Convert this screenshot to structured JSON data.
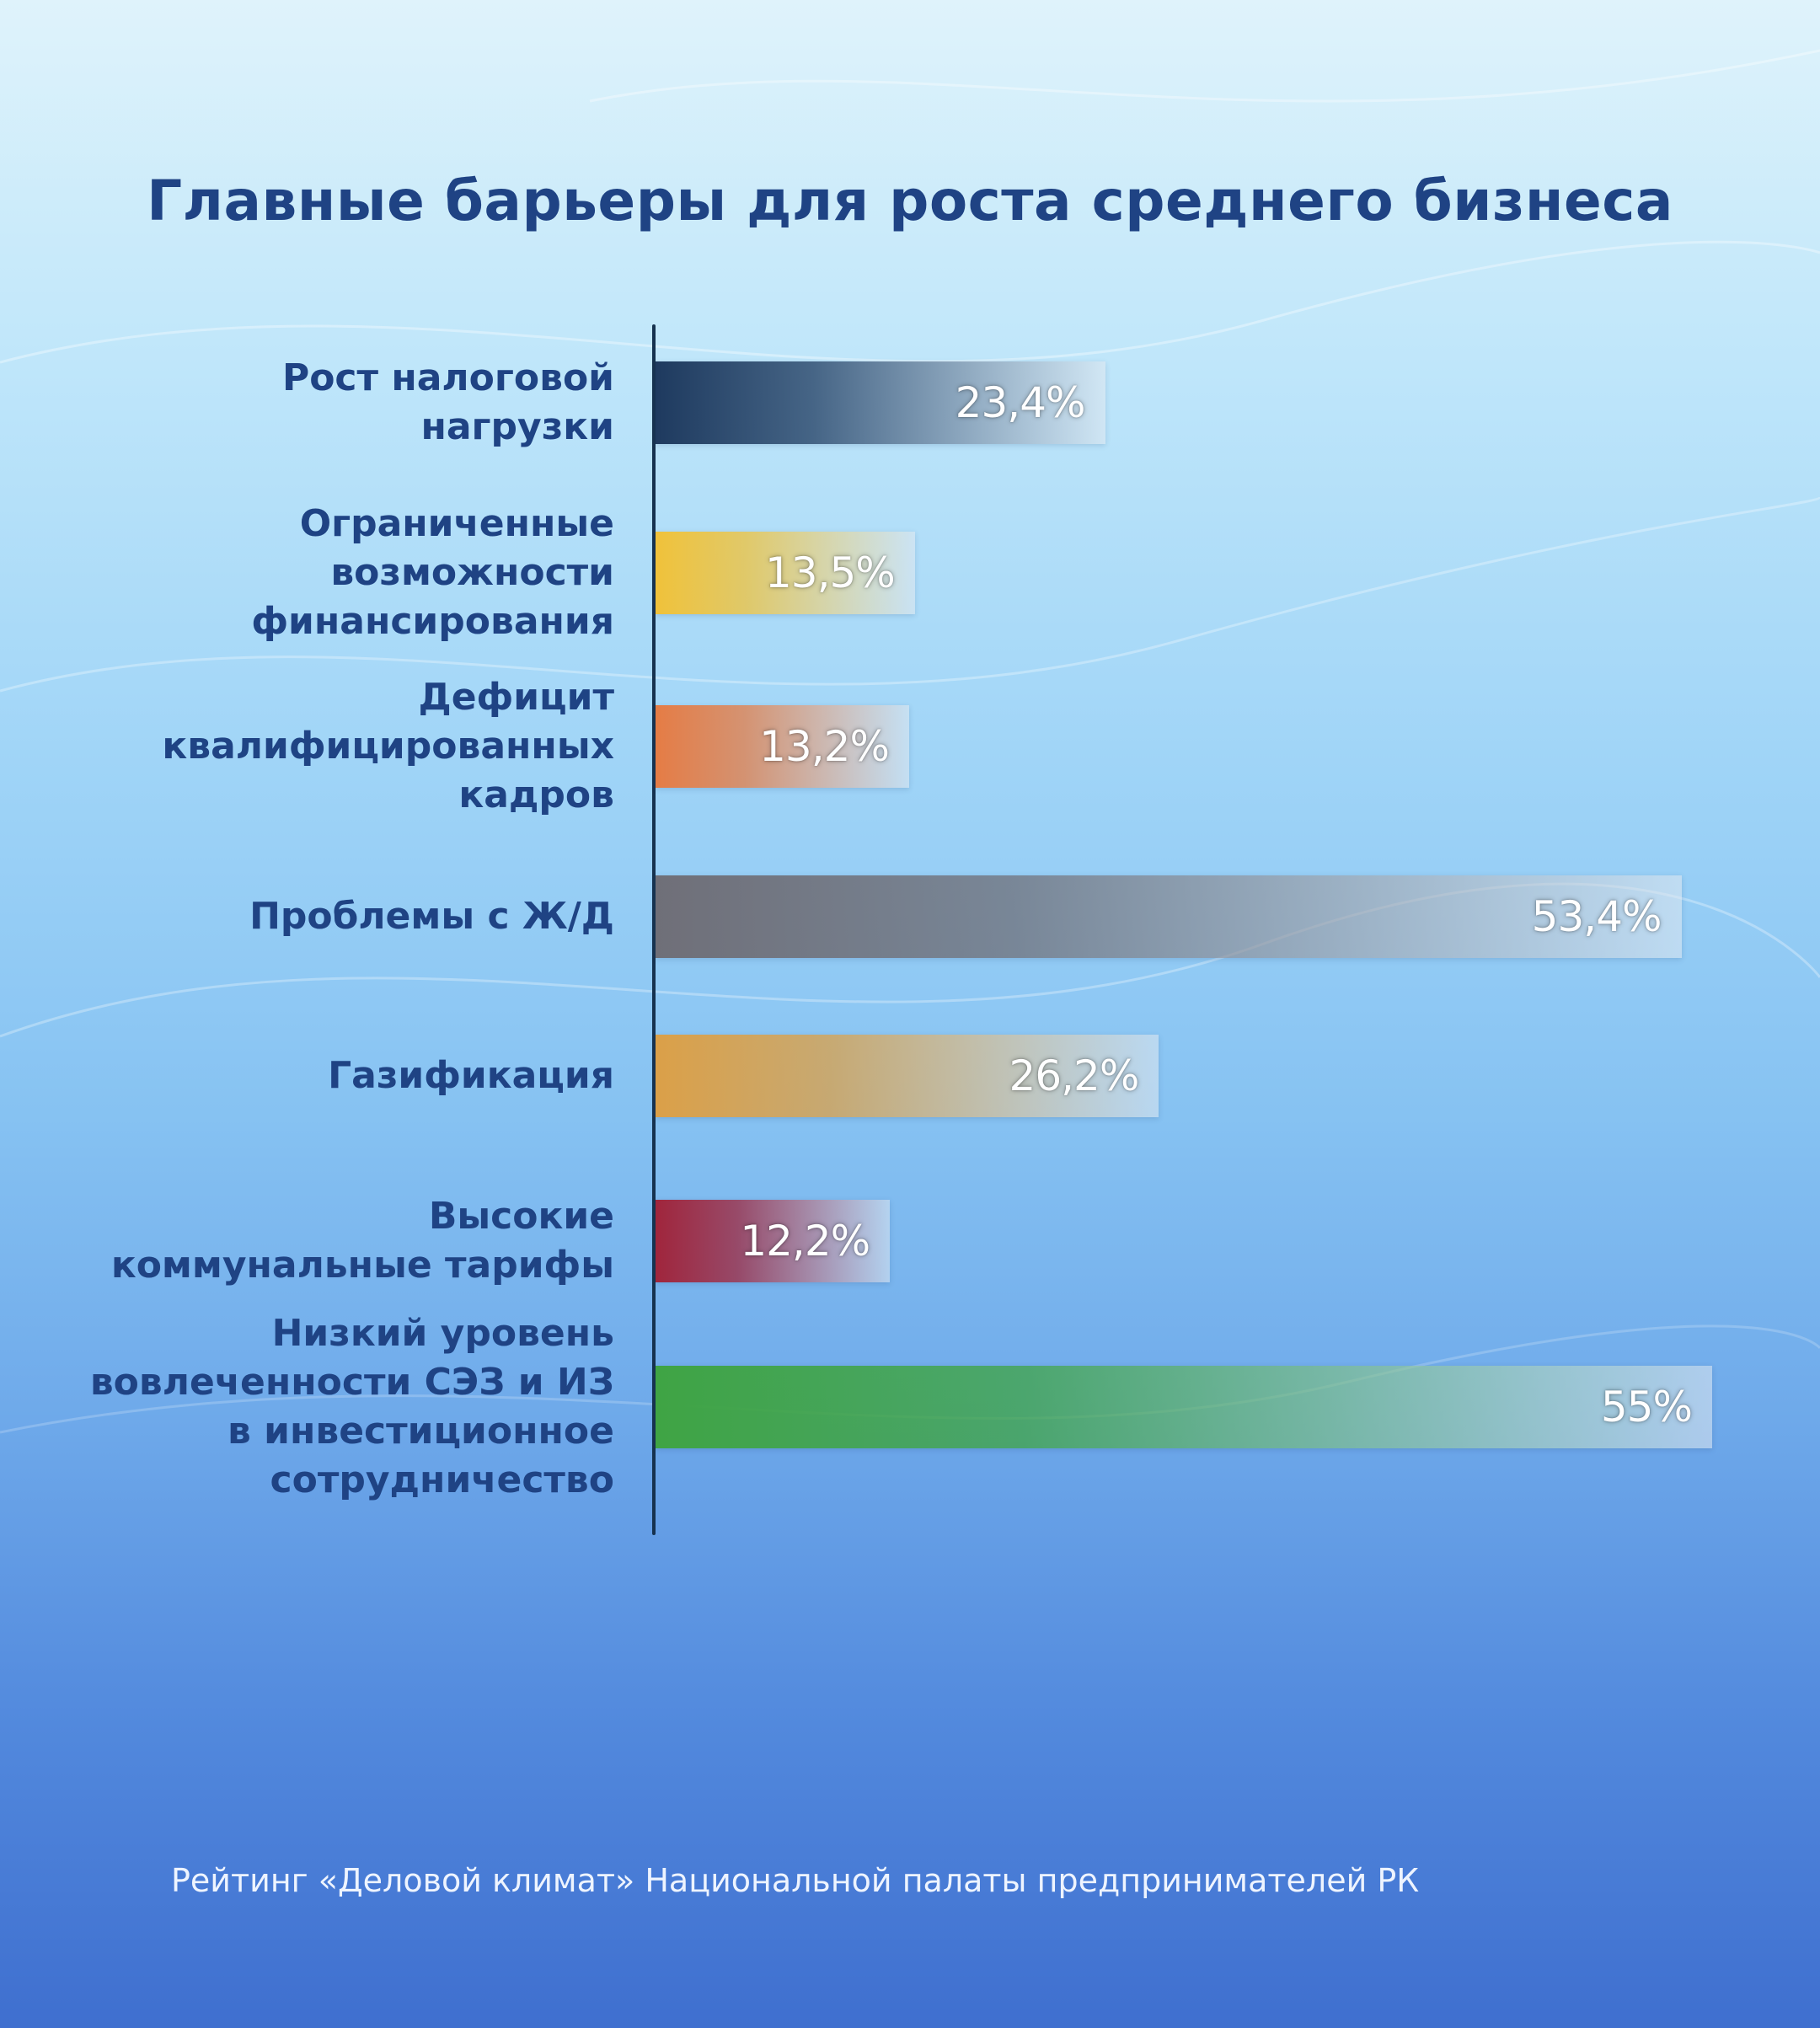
{
  "title": "Главные барьеры для роста среднего бизнеса",
  "source": "Рейтинг «Деловой климат» Национальной палаты предпринимателей РК",
  "chart_data": {
    "type": "bar",
    "orientation": "horizontal",
    "title": "Главные барьеры для роста среднего бизнеса",
    "xlabel": "",
    "ylabel": "",
    "xlim": [
      0,
      60
    ],
    "grid": false,
    "categories": [
      "Рост налоговой\nнагрузки",
      "Ограниченные\nвозможности\nфинансирования",
      "Дефицит\nквалифицированных\nкадров",
      "Проблемы с Ж/Д",
      "Газификация",
      "Высокие\nкоммунальные тарифы",
      "Низкий уровень\nвовлеченности СЭЗ и ИЗ\nв инвестиционное\nсотрудничество"
    ],
    "values": [
      23.4,
      13.5,
      13.2,
      53.4,
      26.2,
      12.2,
      55
    ],
    "value_labels": [
      "23,4%",
      "13,5%",
      "13,2%",
      "53,4%",
      "26,2%",
      "12,2%",
      "55%"
    ],
    "colors": [
      "#1e3a5f",
      "#f0c23a",
      "#e57c45",
      "#6f6f78",
      "#dba048",
      "#a0253c",
      "#3fa444"
    ]
  }
}
